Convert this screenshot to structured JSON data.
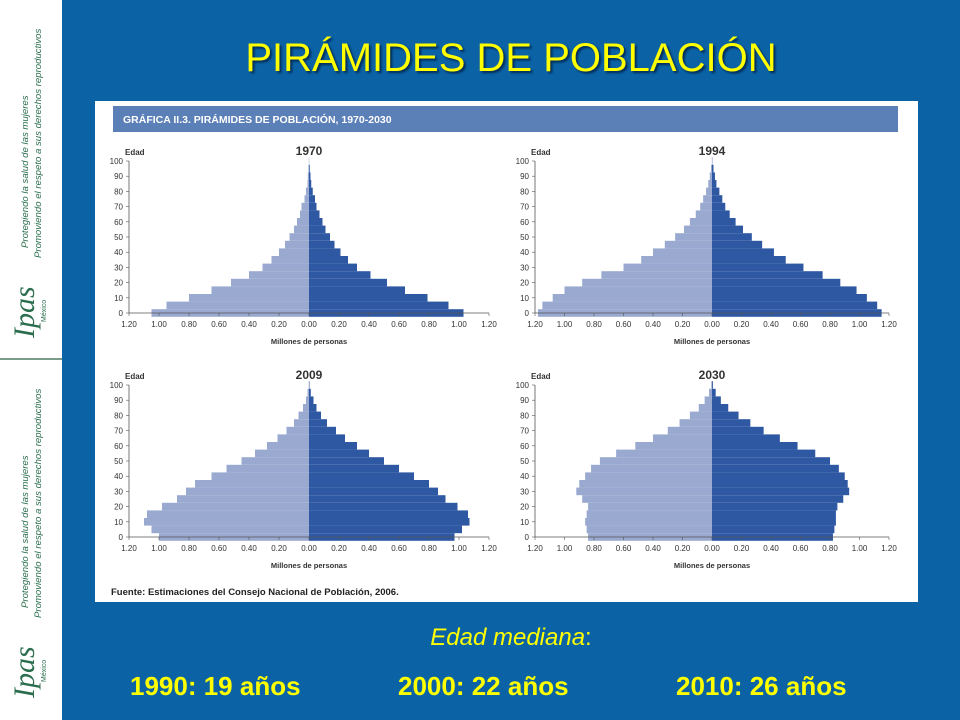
{
  "slide": {
    "title": "PIRÁMIDES DE POBLACIÓN",
    "median_label": "Edad mediana",
    "median_colon": ":",
    "median_values": [
      "1990: 19 años",
      "2000: 22 años",
      "2010: 26 años"
    ]
  },
  "sidebar": {
    "line1": "Protegiendo la salud de las mujeres",
    "line2": "Promoviendo el respeto a sus derechos reproductivos",
    "logo": "Ipas",
    "logo_sub": "México"
  },
  "figure": {
    "header": "GRÁFICA II.3. PIRÁMIDES DE POBLACIÓN, 1970-2030",
    "source": "Fuente: Estimaciones del Consejo Nacional de Población, 2006."
  },
  "colors": {
    "background": "#0b63a6",
    "title": "#ffff00",
    "header_bar": "#5b7fb7",
    "male": "#99a9cf",
    "female": "#2f58a2"
  },
  "chart_data": [
    {
      "type": "bar",
      "orientation": "horizontal-population-pyramid",
      "title": "1970",
      "ylabel": "Edad",
      "xlabel": "Millones de personas",
      "yticks": [
        0,
        10,
        20,
        30,
        40,
        50,
        60,
        70,
        80,
        90,
        100
      ],
      "xticks": [
        "1.20",
        "1.00",
        "0.80",
        "0.60",
        "0.40",
        "0.20",
        "0.00",
        "0.20",
        "0.40",
        "0.60",
        "0.80",
        "1.00",
        "1.20"
      ],
      "xlim": [
        -1.2,
        1.2
      ],
      "ylim": [
        0,
        100
      ],
      "grid": false,
      "age": [
        0,
        5,
        10,
        15,
        20,
        25,
        30,
        35,
        40,
        45,
        50,
        55,
        60,
        65,
        70,
        75,
        80,
        85,
        90,
        95,
        100
      ],
      "series": [
        {
          "side": "left",
          "values": [
            1.05,
            0.95,
            0.8,
            0.65,
            0.52,
            0.4,
            0.31,
            0.25,
            0.2,
            0.16,
            0.13,
            0.1,
            0.08,
            0.06,
            0.05,
            0.03,
            0.02,
            0.01,
            0.008,
            0.004,
            0.001
          ]
        },
        {
          "side": "right",
          "values": [
            1.03,
            0.93,
            0.79,
            0.64,
            0.52,
            0.41,
            0.32,
            0.26,
            0.21,
            0.17,
            0.14,
            0.11,
            0.09,
            0.07,
            0.05,
            0.04,
            0.025,
            0.015,
            0.01,
            0.005,
            0.001
          ]
        }
      ]
    },
    {
      "type": "bar",
      "orientation": "horizontal-population-pyramid",
      "title": "1994",
      "ylabel": "Edad",
      "xlabel": "Millones de personas",
      "yticks": [
        0,
        10,
        20,
        30,
        40,
        50,
        60,
        70,
        80,
        90,
        100
      ],
      "xticks": [
        "1.20",
        "1.00",
        "0.80",
        "0.60",
        "0.40",
        "0.20",
        "0.00",
        "0.20",
        "0.40",
        "0.60",
        "0.80",
        "1.00",
        "1.20"
      ],
      "xlim": [
        -1.2,
        1.2
      ],
      "ylim": [
        0,
        100
      ],
      "grid": false,
      "age": [
        0,
        5,
        10,
        15,
        20,
        25,
        30,
        35,
        40,
        45,
        50,
        55,
        60,
        65,
        70,
        75,
        80,
        85,
        90,
        95,
        100
      ],
      "series": [
        {
          "side": "left",
          "values": [
            1.18,
            1.15,
            1.08,
            1.0,
            0.88,
            0.75,
            0.6,
            0.48,
            0.4,
            0.32,
            0.25,
            0.19,
            0.15,
            0.11,
            0.08,
            0.06,
            0.04,
            0.025,
            0.015,
            0.007,
            0.001
          ]
        },
        {
          "side": "right",
          "values": [
            1.15,
            1.12,
            1.05,
            0.98,
            0.87,
            0.75,
            0.62,
            0.5,
            0.42,
            0.34,
            0.27,
            0.21,
            0.16,
            0.12,
            0.09,
            0.07,
            0.05,
            0.03,
            0.02,
            0.01,
            0.002
          ]
        }
      ]
    },
    {
      "type": "bar",
      "orientation": "horizontal-population-pyramid",
      "title": "2009",
      "ylabel": "Edad",
      "xlabel": "Millones de personas",
      "yticks": [
        0,
        10,
        20,
        30,
        40,
        50,
        60,
        70,
        80,
        90,
        100
      ],
      "xticks": [
        "1.20",
        "1.00",
        "0.80",
        "0.60",
        "0.40",
        "0.20",
        "0.00",
        "0.20",
        "0.40",
        "0.60",
        "0.80",
        "1.00",
        "1.20"
      ],
      "xlim": [
        -1.2,
        1.2
      ],
      "ylim": [
        0,
        100
      ],
      "grid": false,
      "age": [
        0,
        5,
        10,
        15,
        20,
        25,
        30,
        35,
        40,
        45,
        50,
        55,
        60,
        65,
        70,
        75,
        80,
        85,
        90,
        95,
        100
      ],
      "series": [
        {
          "side": "left",
          "values": [
            1.0,
            1.05,
            1.1,
            1.08,
            0.98,
            0.88,
            0.82,
            0.76,
            0.65,
            0.55,
            0.45,
            0.36,
            0.28,
            0.21,
            0.15,
            0.1,
            0.07,
            0.04,
            0.02,
            0.01,
            0.002
          ]
        },
        {
          "side": "right",
          "values": [
            0.97,
            1.02,
            1.07,
            1.06,
            0.99,
            0.91,
            0.86,
            0.8,
            0.7,
            0.6,
            0.5,
            0.4,
            0.32,
            0.24,
            0.18,
            0.12,
            0.08,
            0.05,
            0.03,
            0.012,
            0.003
          ]
        }
      ]
    },
    {
      "type": "bar",
      "orientation": "horizontal-population-pyramid",
      "title": "2030",
      "ylabel": "Edad",
      "xlabel": "Millones de personas",
      "yticks": [
        0,
        10,
        20,
        30,
        40,
        50,
        60,
        70,
        80,
        90,
        100
      ],
      "xticks": [
        "1.20",
        "1.00",
        "0.80",
        "0.60",
        "0.40",
        "0.20",
        "0.00",
        "0.20",
        "0.40",
        "0.60",
        "0.80",
        "1.00",
        "1.20"
      ],
      "xlim": [
        -1.2,
        1.2
      ],
      "ylim": [
        0,
        100
      ],
      "grid": false,
      "age": [
        0,
        5,
        10,
        15,
        20,
        25,
        30,
        35,
        40,
        45,
        50,
        55,
        60,
        65,
        70,
        75,
        80,
        85,
        90,
        95,
        100
      ],
      "series": [
        {
          "side": "left",
          "values": [
            0.84,
            0.85,
            0.86,
            0.85,
            0.84,
            0.88,
            0.92,
            0.9,
            0.86,
            0.82,
            0.76,
            0.65,
            0.52,
            0.4,
            0.3,
            0.22,
            0.15,
            0.09,
            0.05,
            0.02,
            0.005
          ]
        },
        {
          "side": "right",
          "values": [
            0.82,
            0.83,
            0.84,
            0.84,
            0.85,
            0.89,
            0.93,
            0.92,
            0.9,
            0.86,
            0.8,
            0.7,
            0.58,
            0.46,
            0.35,
            0.26,
            0.18,
            0.11,
            0.06,
            0.025,
            0.006
          ]
        }
      ]
    }
  ]
}
